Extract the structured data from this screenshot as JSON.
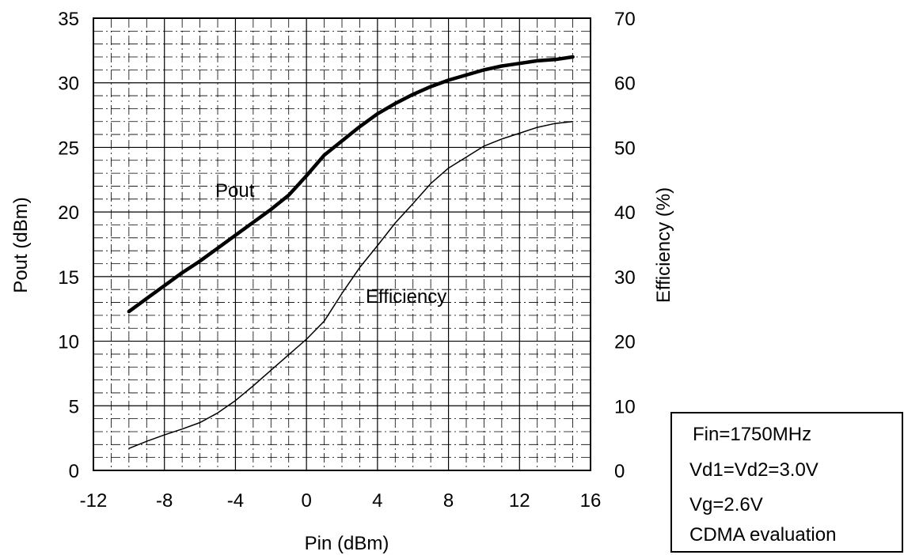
{
  "chart_data": {
    "type": "line",
    "xlabel": "Pin (dBm)",
    "ylabel": "Pout (dBm)",
    "y2label": "Efficiency (%)",
    "xlim": [
      -12,
      16
    ],
    "ylim": [
      0,
      35
    ],
    "y2lim": [
      0,
      70
    ],
    "xticks": [
      -12,
      -8,
      -4,
      0,
      4,
      8,
      12,
      16
    ],
    "yticks": [
      0,
      5,
      10,
      15,
      20,
      25,
      30,
      35
    ],
    "y2ticks": [
      0,
      10,
      20,
      30,
      40,
      50,
      60,
      70
    ],
    "grid": true,
    "series": [
      {
        "name": "Pout",
        "axis": "left",
        "x": [
          -10,
          -9,
          -8,
          -7,
          -6,
          -5,
          -4,
          -3,
          -2,
          -1,
          0,
          1,
          2,
          3,
          4,
          5,
          6,
          7,
          8,
          9,
          10,
          11,
          12,
          13,
          14,
          15
        ],
        "values": [
          12.3,
          13.3,
          14.3,
          15.3,
          16.2,
          17.2,
          18.2,
          19.2,
          20.2,
          21.3,
          22.8,
          24.4,
          25.5,
          26.6,
          27.6,
          28.4,
          29.1,
          29.7,
          30.2,
          30.6,
          31.0,
          31.3,
          31.5,
          31.7,
          31.8,
          32.0
        ]
      },
      {
        "name": "Efficiency",
        "axis": "right",
        "x": [
          -10,
          -9,
          -8,
          -7,
          -6,
          -5,
          -4,
          -3,
          -2,
          -1,
          0,
          1,
          2,
          3,
          4,
          5,
          6,
          7,
          8,
          9,
          10,
          11,
          12,
          13,
          14,
          15
        ],
        "values": [
          3.4,
          4.5,
          5.5,
          6.4,
          7.4,
          8.9,
          10.8,
          13.1,
          15.5,
          17.9,
          20.3,
          23.1,
          27.4,
          31.4,
          34.8,
          38.3,
          41.3,
          44.4,
          46.8,
          48.5,
          50.2,
          51.3,
          52.2,
          53.1,
          53.7,
          54.0
        ]
      }
    ]
  },
  "series_labels": {
    "pout": "Pout",
    "efficiency": "Efficiency"
  },
  "conditions": {
    "line1": "Fin=1750MHz",
    "line2": "Vd1=Vd2=3.0V",
    "line3": "Vg=2.6V",
    "line4": "CDMA evaluation"
  }
}
